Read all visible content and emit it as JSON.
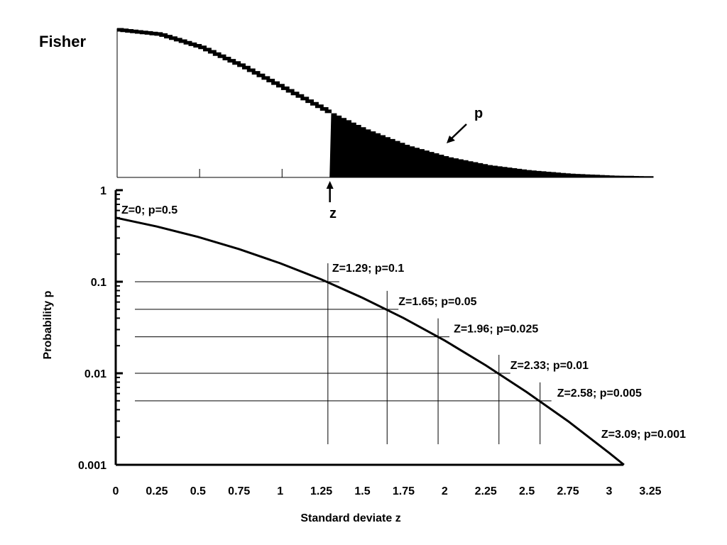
{
  "chart_data": [
    {
      "type": "area",
      "title": "Fisher",
      "shaded_from_x": 1.29,
      "shaded_label": "p",
      "marker_label": "z",
      "xlim": [
        0,
        3.25
      ],
      "curve": [
        {
          "x": 0,
          "y": 0.399
        },
        {
          "x": 0.25,
          "y": 0.387
        },
        {
          "x": 0.5,
          "y": 0.352
        },
        {
          "x": 0.75,
          "y": 0.301
        },
        {
          "x": 1,
          "y": 0.242
        },
        {
          "x": 1.25,
          "y": 0.183
        },
        {
          "x": 1.5,
          "y": 0.13
        },
        {
          "x": 1.75,
          "y": 0.086
        },
        {
          "x": 2,
          "y": 0.054
        },
        {
          "x": 2.25,
          "y": 0.032
        },
        {
          "x": 2.5,
          "y": 0.018
        },
        {
          "x": 2.75,
          "y": 0.009
        },
        {
          "x": 3,
          "y": 0.004
        },
        {
          "x": 3.25,
          "y": 0.002
        }
      ]
    },
    {
      "type": "line",
      "xlabel": "Standard deviate z",
      "ylabel": "Probability p",
      "xlim": [
        0,
        3.25
      ],
      "ylim": [
        0.001,
        1
      ],
      "yscale": "log",
      "x_ticks": [
        "0",
        "0.25",
        "0.5",
        "0.75",
        "1",
        "1.25",
        "1.5",
        "1.75",
        "2",
        "2.25",
        "2.5",
        "2.75",
        "3",
        "3.25"
      ],
      "y_ticks": [
        {
          "value": 1,
          "label": "1"
        },
        {
          "value": 0.1,
          "label": "0.1"
        },
        {
          "value": 0.01,
          "label": "0.01"
        },
        {
          "value": 0.001,
          "label": "0.001"
        }
      ],
      "curve": [
        {
          "x": 0,
          "y": 0.5
        },
        {
          "x": 0.25,
          "y": 0.401
        },
        {
          "x": 0.5,
          "y": 0.309
        },
        {
          "x": 0.75,
          "y": 0.227
        },
        {
          "x": 1,
          "y": 0.159
        },
        {
          "x": 1.25,
          "y": 0.106
        },
        {
          "x": 1.5,
          "y": 0.0668
        },
        {
          "x": 1.75,
          "y": 0.0401
        },
        {
          "x": 2,
          "y": 0.0228
        },
        {
          "x": 2.25,
          "y": 0.0122
        },
        {
          "x": 2.5,
          "y": 0.0062
        },
        {
          "x": 2.75,
          "y": 0.003
        },
        {
          "x": 3,
          "y": 0.00135
        },
        {
          "x": 3.09,
          "y": 0.001
        }
      ],
      "annotations": [
        {
          "z": 0,
          "p": 0.5,
          "text": "Z=0; p=0.5",
          "guides": false
        },
        {
          "z": 1.29,
          "p": 0.1,
          "text": "Z=1.29; p=0.1",
          "guides": true
        },
        {
          "z": 1.65,
          "p": 0.05,
          "text": "Z=1.65; p=0.05",
          "guides": true
        },
        {
          "z": 1.96,
          "p": 0.025,
          "text": "Z=1.96; p=0.025",
          "guides": true
        },
        {
          "z": 2.33,
          "p": 0.01,
          "text": "Z=2.33; p=0.01",
          "guides": true
        },
        {
          "z": 2.58,
          "p": 0.005,
          "text": "Z=2.58; p=0.005",
          "guides": true
        },
        {
          "z": 3.09,
          "p": 0.001,
          "text": "Z=3.09; p=0.001",
          "guides": false
        }
      ]
    }
  ]
}
